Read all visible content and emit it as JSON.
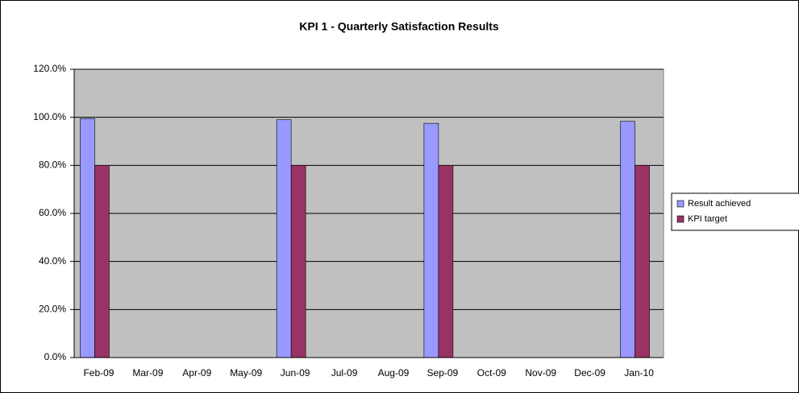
{
  "chart_data": {
    "type": "bar",
    "title": "KPI 1 - Quarterly Satisfaction Results",
    "categories": [
      "Feb-09",
      "Mar-09",
      "Apr-09",
      "May-09",
      "Jun-09",
      "Jul-09",
      "Aug-09",
      "Sep-09",
      "Oct-09",
      "Nov-09",
      "Dec-09",
      "Jan-10"
    ],
    "series": [
      {
        "name": "Result achieved",
        "color": "#9999ff",
        "values": [
          99.5,
          null,
          null,
          null,
          99.0,
          null,
          null,
          97.5,
          null,
          null,
          null,
          98.3
        ]
      },
      {
        "name": "KPI target",
        "color": "#993366",
        "values": [
          80,
          null,
          null,
          null,
          80,
          null,
          null,
          80,
          null,
          null,
          null,
          80
        ]
      }
    ],
    "ylim": [
      0,
      120
    ],
    "yticks": [
      {
        "value": 0,
        "label": "0.0%"
      },
      {
        "value": 20,
        "label": "20.0%"
      },
      {
        "value": 40,
        "label": "40.0%"
      },
      {
        "value": 60,
        "label": "60.0%"
      },
      {
        "value": 80,
        "label": "80.0%"
      },
      {
        "value": 100,
        "label": "100.0%"
      },
      {
        "value": 120,
        "label": "120.0%"
      }
    ],
    "grid": true,
    "legend": "right"
  }
}
